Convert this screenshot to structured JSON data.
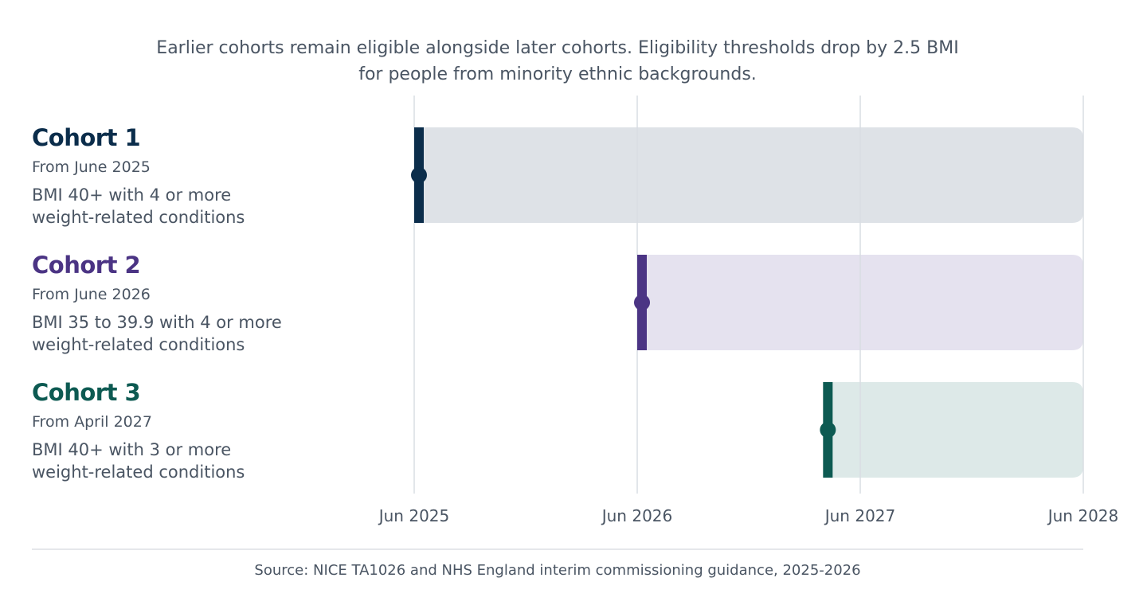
{
  "subtitle": {
    "line1": "Earlier cohorts remain eligible alongside later cohorts. Eligibility thresholds drop by 2.5 BMI",
    "line2": "for people from minority ethnic backgrounds."
  },
  "source": "Source: NICE TA1026 and NHS England interim commissioning guidance, 2025-2026",
  "chart_data": {
    "type": "timeline",
    "x_axis": {
      "ticks": [
        "Jun 2025",
        "Jun 2026",
        "Jun 2027",
        "Jun 2028"
      ],
      "range": [
        "2025-06",
        "2028-06"
      ],
      "grid": true
    },
    "series": [
      {
        "name": "Cohort 1",
        "date_label": "From June 2025",
        "description_line1": "BMI 40+ with 4 or more",
        "description_line2": "weight-related conditions",
        "start": "2025-06",
        "color": "#0b2d4b",
        "fill": "#dee2e7"
      },
      {
        "name": "Cohort 2",
        "date_label": "From June 2026",
        "description_line1": "BMI 35 to 39.9 with 4 or more",
        "description_line2": "weight-related conditions",
        "start": "2026-06",
        "color": "#4b3484",
        "fill": "#e5e2ef"
      },
      {
        "name": "Cohort 3",
        "date_label": "From April 2027",
        "description_line1": "BMI 40+ with 3 or more",
        "description_line2": "weight-related conditions",
        "start": "2027-04",
        "color": "#0d5a52",
        "fill": "#dde9e8"
      }
    ]
  }
}
